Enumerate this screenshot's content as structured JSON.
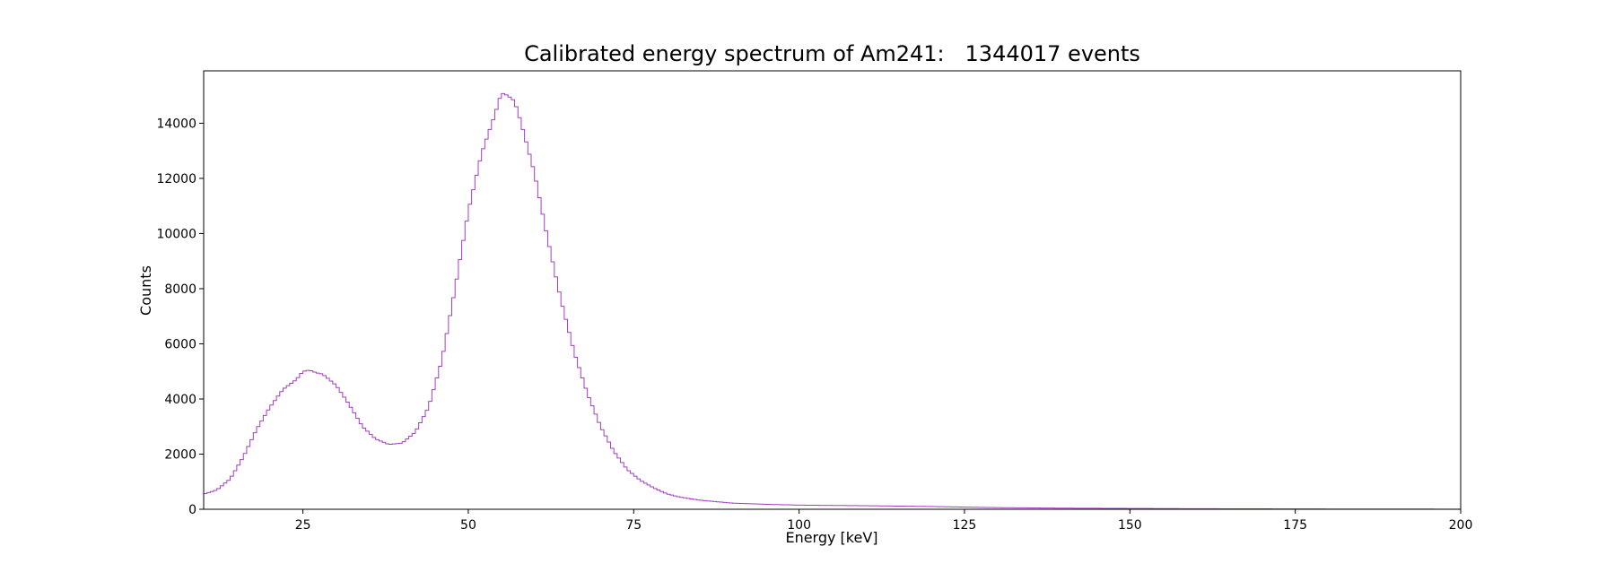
{
  "chart_data": {
    "type": "line",
    "drawstyle": "steps-mid",
    "title": "Calibrated energy spectrum of Am241:   1344017 events",
    "xlabel": "Energy [keV]",
    "ylabel": "Counts",
    "xlim": [
      10,
      200
    ],
    "ylim": [
      0,
      15900
    ],
    "xticks": [
      25,
      50,
      75,
      100,
      125,
      150,
      175,
      200
    ],
    "yticks": [
      0,
      2000,
      4000,
      6000,
      8000,
      10000,
      12000,
      14000
    ],
    "grid": false,
    "legend": "none",
    "line_color": "#a23fc0",
    "series": [
      {
        "x": [
          10,
          12,
          14,
          16,
          18,
          20,
          22,
          24,
          25,
          26,
          27,
          28,
          30,
          32,
          34,
          36,
          38,
          40,
          42,
          44,
          46,
          48,
          50,
          52,
          54,
          55,
          56,
          57,
          58,
          60,
          62,
          64,
          66,
          68,
          70,
          72,
          74,
          76,
          78,
          80,
          82,
          85,
          90,
          95,
          100,
          110,
          120,
          130,
          140,
          160,
          180,
          200
        ],
        "y": [
          550,
          700,
          1100,
          1900,
          2900,
          3700,
          4350,
          4700,
          5000,
          5050,
          4950,
          4900,
          4500,
          3800,
          3000,
          2550,
          2350,
          2400,
          2800,
          3700,
          5400,
          8000,
          10800,
          12900,
          14300,
          15100,
          15000,
          14800,
          14000,
          12200,
          9800,
          7600,
          5700,
          4200,
          3000,
          2100,
          1450,
          1050,
          780,
          560,
          440,
          330,
          220,
          180,
          150,
          130,
          100,
          60,
          40,
          20,
          10,
          5
        ]
      }
    ]
  }
}
